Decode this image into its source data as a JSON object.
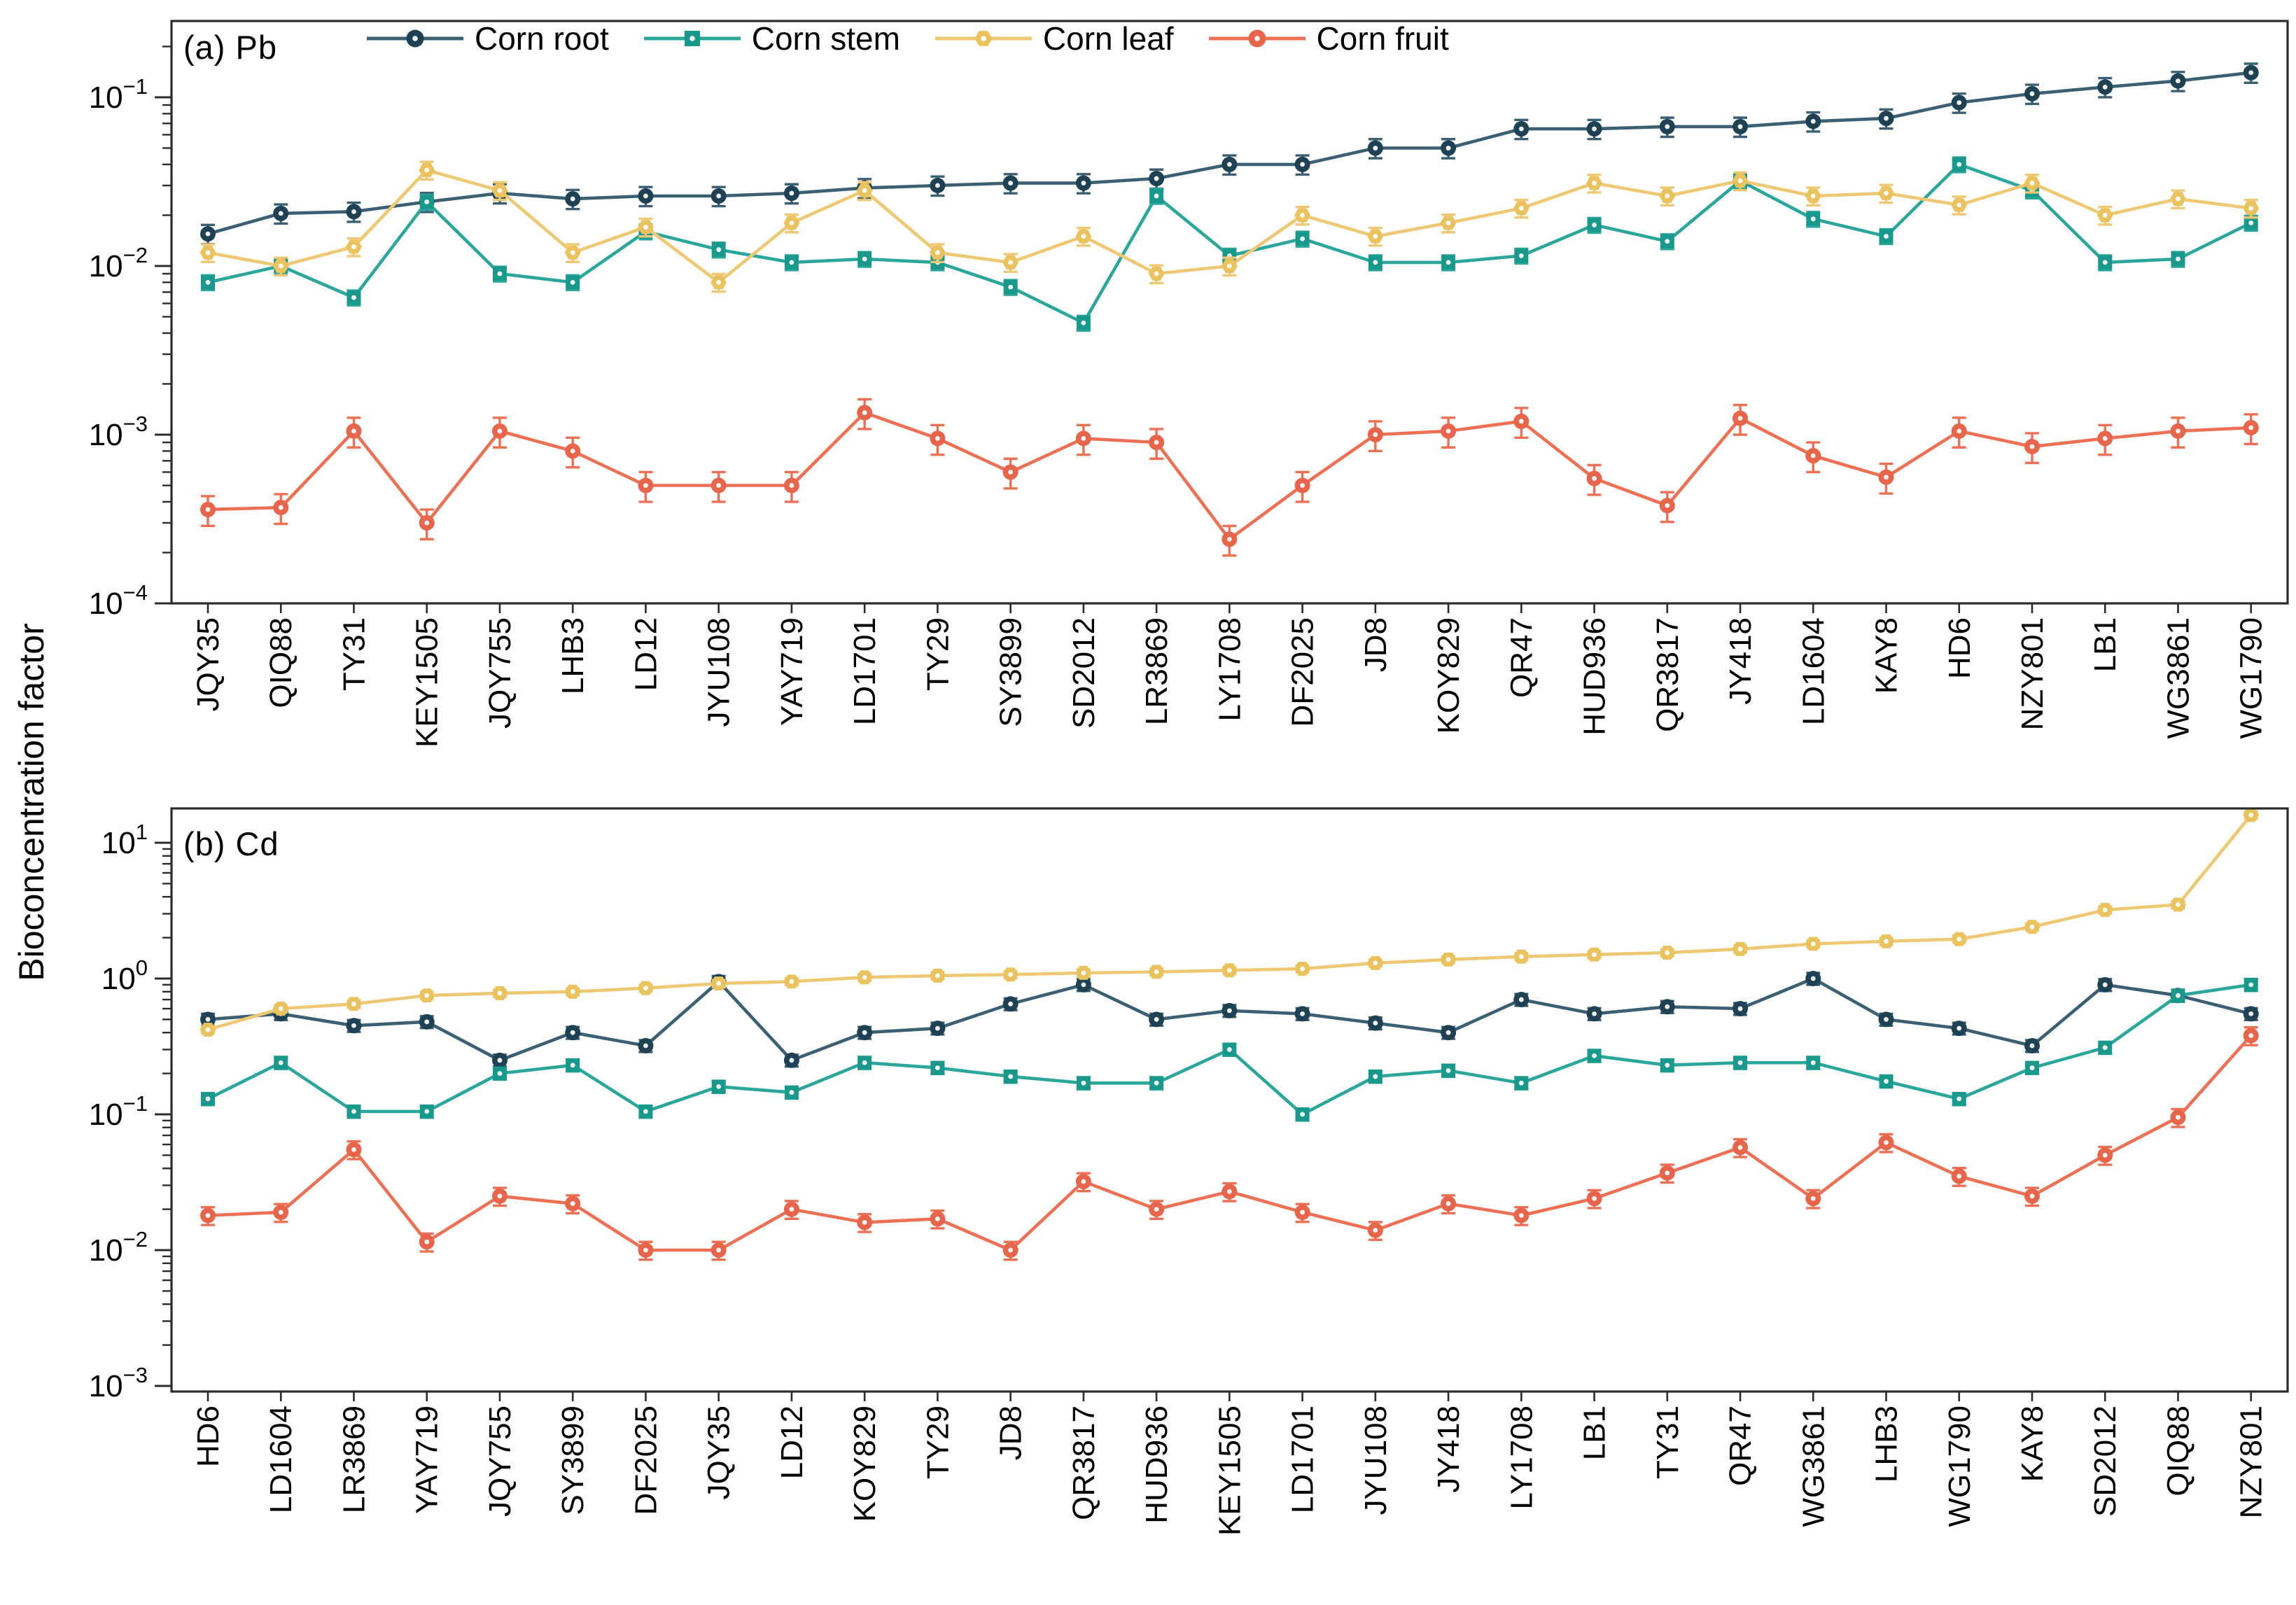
{
  "figure": {
    "ylabel": "Bioconcentration factor",
    "background": "#ffffff",
    "axis_color": "#2b2b2b",
    "text_color": "#111111"
  },
  "chart_data": [
    {
      "type": "line",
      "panel_label": "(a) Pb",
      "element": "Pb",
      "ylog": true,
      "ylim": [
        0.0001,
        0.283
      ],
      "ytick_exponents": [
        -1,
        -2,
        -3,
        -4
      ],
      "legend_position": "top-inside",
      "grid": false,
      "categories": [
        "JQY35",
        "QIQ88",
        "TY31",
        "KEY1505",
        "JQY755",
        "LHB3",
        "LD12",
        "JYU108",
        "YAY719",
        "LD1701",
        "TY29",
        "SY3899",
        "SD2012",
        "LR3869",
        "LY1708",
        "DF2025",
        "JD8",
        "KOY829",
        "QR47",
        "HUD936",
        "QR3817",
        "JY418",
        "LD1604",
        "KAY8",
        "HD6",
        "NZY801",
        "LB1",
        "WG3861",
        "WG1790"
      ],
      "series": [
        {
          "name": "Corn root",
          "marker": "circle",
          "line_color": "#3b5f73",
          "marker_color": "#1e4254",
          "err_frac": 0.13,
          "values": [
            0.0155,
            0.0205,
            0.021,
            0.024,
            0.027,
            0.025,
            0.026,
            0.026,
            0.027,
            0.029,
            0.03,
            0.031,
            0.031,
            0.033,
            0.04,
            0.04,
            0.05,
            0.05,
            0.065,
            0.065,
            0.067,
            0.067,
            0.072,
            0.075,
            0.093,
            0.105,
            0.115,
            0.125,
            0.14
          ]
        },
        {
          "name": "Corn stem",
          "marker": "square",
          "line_color": "#2aa79a",
          "marker_color": "#18998b",
          "err_frac": 0.1,
          "values": [
            0.008,
            0.01,
            0.0065,
            0.024,
            0.009,
            0.008,
            0.016,
            0.0125,
            0.0105,
            0.011,
            0.0105,
            0.0075,
            0.0046,
            0.026,
            0.0115,
            0.0145,
            0.0105,
            0.0105,
            0.0115,
            0.0175,
            0.014,
            0.032,
            0.019,
            0.015,
            0.04,
            0.028,
            0.0105,
            0.011,
            0.018
          ]
        },
        {
          "name": "Corn leaf",
          "marker": "hexagon",
          "line_color": "#eec873",
          "marker_color": "#eac35f",
          "err_frac": 0.12,
          "values": [
            0.012,
            0.01,
            0.013,
            0.037,
            0.028,
            0.012,
            0.017,
            0.008,
            0.018,
            0.028,
            0.012,
            0.0105,
            0.015,
            0.009,
            0.01,
            0.02,
            0.015,
            0.018,
            0.022,
            0.031,
            0.026,
            0.032,
            0.026,
            0.027,
            0.023,
            0.031,
            0.02,
            0.025,
            0.022
          ]
        },
        {
          "name": "Corn fruit",
          "marker": "circle",
          "line_color": "#ee7054",
          "marker_color": "#e7654a",
          "err_frac": 0.2,
          "values": [
            0.00036,
            0.00037,
            0.00105,
            0.0003,
            0.00105,
            0.0008,
            0.0005,
            0.0005,
            0.0005,
            0.00135,
            0.00095,
            0.0006,
            0.00095,
            0.0009,
            0.00024,
            0.0005,
            0.001,
            0.00105,
            0.0012,
            0.00055,
            0.00038,
            0.00125,
            0.00075,
            0.00056,
            0.00105,
            0.00085,
            0.00095,
            0.00105,
            0.0011
          ]
        }
      ]
    },
    {
      "type": "line",
      "panel_label": "(b) Cd",
      "element": "Cd",
      "ylog": true,
      "ylim": [
        0.00076,
        17.9
      ],
      "ytick_exponents": [
        1,
        0,
        -1,
        -2,
        -3
      ],
      "legend_position": "none",
      "grid": false,
      "categories": [
        "HD6",
        "LD1604",
        "LR3869",
        "YAY719",
        "JQY755",
        "SY3899",
        "DF2025",
        "JQY35",
        "LD12",
        "KOY829",
        "TY29",
        "JD8",
        "QR3817",
        "HUD936",
        "KEY1505",
        "LD1701",
        "JYU108",
        "JY418",
        "LY1708",
        "LB1",
        "TY31",
        "QR47",
        "WG3861",
        "LHB3",
        "WG1790",
        "KAY8",
        "SD2012",
        "QIQ88",
        "NZY801"
      ],
      "series": [
        {
          "name": "Corn root",
          "marker": "circle",
          "line_color": "#3b5f73",
          "marker_color": "#1e4254",
          "err_frac": 0.1,
          "values": [
            0.5,
            0.55,
            0.45,
            0.48,
            0.25,
            0.4,
            0.32,
            0.95,
            0.25,
            0.4,
            0.43,
            0.65,
            0.9,
            0.5,
            0.58,
            0.55,
            0.47,
            0.4,
            0.7,
            0.55,
            0.62,
            0.6,
            1.0,
            0.5,
            0.43,
            0.32,
            0.9,
            0.75,
            0.55
          ]
        },
        {
          "name": "Corn stem",
          "marker": "square",
          "line_color": "#2aa79a",
          "marker_color": "#18998b",
          "err_frac": 0.1,
          "values": [
            0.13,
            0.24,
            0.105,
            0.105,
            0.2,
            0.23,
            0.105,
            0.16,
            0.145,
            0.24,
            0.22,
            0.19,
            0.17,
            0.17,
            0.3,
            0.1,
            0.19,
            0.21,
            0.17,
            0.27,
            0.23,
            0.24,
            0.24,
            0.175,
            0.13,
            0.22,
            0.31,
            0.75,
            0.9
          ]
        },
        {
          "name": "Corn leaf",
          "marker": "hexagon",
          "line_color": "#eec873",
          "marker_color": "#eac35f",
          "err_frac": 0.06,
          "values": [
            0.42,
            0.6,
            0.65,
            0.75,
            0.78,
            0.8,
            0.85,
            0.92,
            0.95,
            1.02,
            1.05,
            1.07,
            1.1,
            1.12,
            1.15,
            1.18,
            1.3,
            1.38,
            1.45,
            1.5,
            1.55,
            1.65,
            1.8,
            1.88,
            1.95,
            2.4,
            3.2,
            3.5,
            16.0
          ]
        },
        {
          "name": "Corn fruit",
          "marker": "circle",
          "line_color": "#ee7054",
          "marker_color": "#e7654a",
          "err_frac": 0.15,
          "values": [
            0.018,
            0.019,
            0.055,
            0.0115,
            0.025,
            0.022,
            0.01,
            0.01,
            0.02,
            0.016,
            0.017,
            0.01,
            0.032,
            0.02,
            0.027,
            0.019,
            0.014,
            0.022,
            0.018,
            0.024,
            0.037,
            0.057,
            0.024,
            0.062,
            0.035,
            0.025,
            0.05,
            0.095,
            0.38
          ]
        }
      ]
    }
  ]
}
